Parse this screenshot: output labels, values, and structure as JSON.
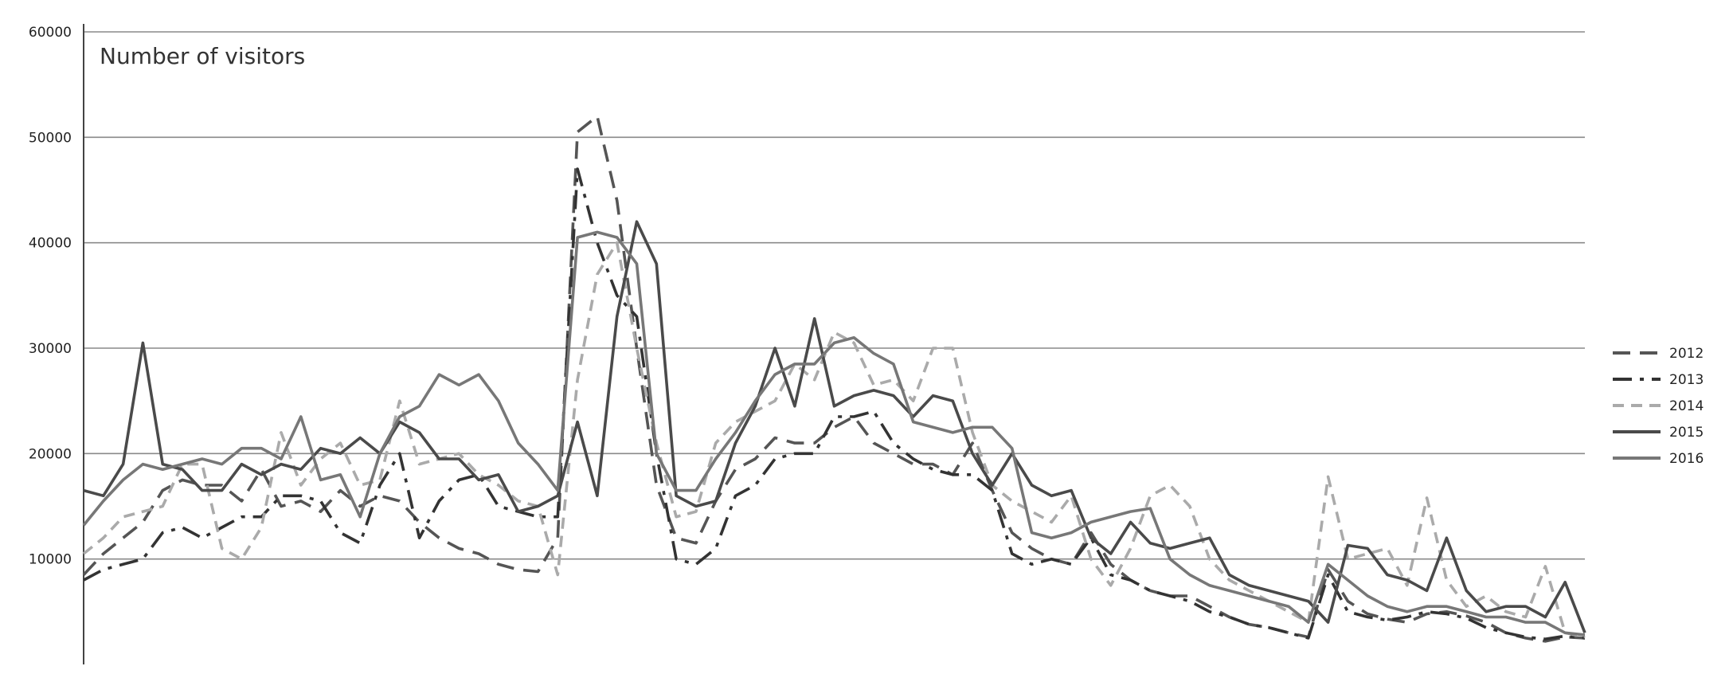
{
  "chart_data": {
    "type": "line",
    "title": "",
    "xlabel": "",
    "ylabel": "Number of visitors",
    "ylim": [
      0,
      60000
    ],
    "yticks": [
      10000,
      20000,
      30000,
      40000,
      50000,
      60000
    ],
    "grid": "horizontal",
    "legend_position": "right",
    "series": [
      {
        "name": "2012",
        "color": "#555555",
        "dash": "long-dash",
        "values": [
          8500,
          10500,
          12000,
          13500,
          16500,
          17500,
          17000,
          17000,
          15500,
          18500,
          15000,
          15500,
          14500,
          16500,
          15000,
          16000,
          15500,
          13500,
          12000,
          11000,
          10500,
          9500,
          9000,
          8800,
          12000,
          50500,
          52000,
          44000,
          30000,
          17000,
          12000,
          11500,
          15500,
          18500,
          19500,
          21500,
          21000,
          21000,
          22500,
          23500,
          21000,
          20000,
          19000,
          19000,
          18000,
          21000,
          16500,
          12500,
          11000,
          10000,
          9500,
          12500,
          9500,
          8000,
          7000,
          6500,
          6500,
          5500,
          4500,
          3800,
          3500,
          3000,
          2600,
          9000,
          6000,
          4800,
          4300,
          4000,
          4800,
          5000,
          4600,
          4000,
          3000,
          2500,
          2200,
          2600,
          2500
        ]
      },
      {
        "name": "2013",
        "color": "#333333",
        "dash": "dash-dot",
        "values": [
          8000,
          9000,
          9500,
          10000,
          12500,
          13000,
          12000,
          13000,
          14000,
          14000,
          16000,
          16000,
          15500,
          12500,
          11500,
          17000,
          20000,
          12000,
          15500,
          17500,
          18000,
          15000,
          14500,
          14000,
          14000,
          47000,
          40000,
          35000,
          33000,
          20000,
          10000,
          9500,
          11000,
          16000,
          17000,
          19500,
          20000,
          20000,
          23500,
          23500,
          24000,
          21000,
          19500,
          18500,
          18000,
          18000,
          16500,
          10500,
          9500,
          10000,
          9500,
          12000,
          8500,
          8000,
          7000,
          6500,
          6000,
          5000,
          4500,
          3800,
          3500,
          3000,
          2500,
          8500,
          5000,
          4500,
          4200,
          4500,
          5000,
          4800,
          4400,
          3500,
          3000,
          2600,
          2400,
          2700,
          2500
        ]
      },
      {
        "name": "2014",
        "color": "#aaaaaa",
        "dash": "dash",
        "values": [
          10500,
          12000,
          14000,
          14500,
          15000,
          19000,
          19000,
          11000,
          10000,
          13000,
          22000,
          17000,
          19500,
          21000,
          17000,
          17500,
          25000,
          19000,
          19500,
          20000,
          18000,
          17000,
          15500,
          15000,
          8500,
          27000,
          37000,
          40000,
          30000,
          21000,
          14000,
          14500,
          21000,
          23000,
          24000,
          25000,
          28500,
          27000,
          31500,
          30500,
          26500,
          27000,
          25000,
          30000,
          30000,
          22000,
          17000,
          15500,
          14500,
          13500,
          16000,
          10000,
          7500,
          11000,
          16000,
          17000,
          15000,
          10000,
          8000,
          7000,
          6000,
          5000,
          4000,
          17800,
          10000,
          10500,
          11000,
          7500,
          15800,
          8000,
          5500,
          6500,
          5000,
          4500,
          9300,
          3000,
          2600
        ]
      },
      {
        "name": "2015",
        "color": "#4a4a4a",
        "dash": "solid",
        "values": [
          16500,
          16000,
          19000,
          30500,
          19000,
          18500,
          16500,
          16500,
          19000,
          18000,
          19000,
          18500,
          20500,
          20000,
          21500,
          20000,
          23000,
          22000,
          19500,
          19500,
          17500,
          18000,
          14500,
          15000,
          16000,
          23000,
          16000,
          33000,
          42000,
          38000,
          16000,
          15000,
          15500,
          21000,
          24500,
          30000,
          24500,
          32800,
          24500,
          25500,
          26000,
          25500,
          23500,
          25500,
          25000,
          20000,
          17000,
          20000,
          17000,
          16000,
          16500,
          12000,
          10500,
          13500,
          11500,
          11000,
          11500,
          12000,
          8500,
          7500,
          7000,
          6500,
          6000,
          4000,
          11300,
          11000,
          8500,
          8000,
          7000,
          12000,
          7000,
          5000,
          5500,
          5500,
          4500,
          7800,
          3000
        ]
      },
      {
        "name": "2016",
        "color": "#777777",
        "dash": "solid",
        "values": [
          13200,
          15500,
          17500,
          19000,
          18500,
          19000,
          19500,
          19000,
          20500,
          20500,
          19500,
          23500,
          17500,
          18000,
          14000,
          20000,
          23500,
          24500,
          27500,
          26500,
          27500,
          25000,
          21000,
          19000,
          16500,
          40500,
          41000,
          40500,
          38000,
          20000,
          16500,
          16500,
          19500,
          22000,
          25000,
          27500,
          28500,
          28500,
          30500,
          31000,
          29500,
          28500,
          23000,
          22500,
          22000,
          22500,
          22500,
          20500,
          12500,
          12000,
          12500,
          13500,
          14000,
          14500,
          14800,
          10000,
          8500,
          7500,
          7000,
          6500,
          6000,
          5500,
          4000,
          9500,
          8000,
          6500,
          5500,
          5000,
          5500,
          5500,
          5000,
          4500,
          4500,
          4000,
          4000,
          3000,
          2800
        ]
      }
    ]
  }
}
